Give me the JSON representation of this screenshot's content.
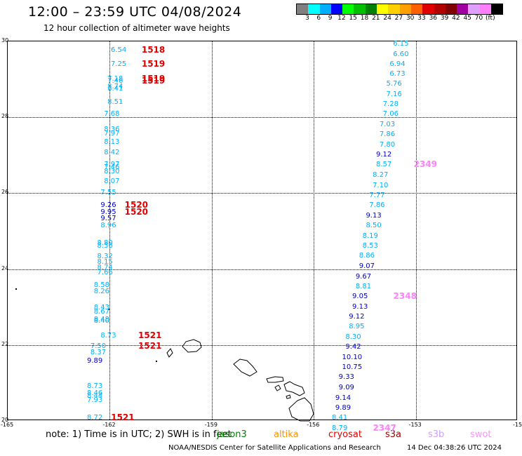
{
  "header": {
    "title": "12:00 – 23:59 UTC 04/08/2024",
    "subtitle": "12 hour collection of altimeter wave heights"
  },
  "legend": {
    "colors": [
      "#808080",
      "#00ffff",
      "#00b0ff",
      "#0000ff",
      "#00ff00",
      "#00c000",
      "#008000",
      "#ffff00",
      "#ffd000",
      "#ffa000",
      "#ff6000",
      "#e00000",
      "#b00000",
      "#800000",
      "#a000a0",
      "#e0a0ff",
      "#ff80ff",
      "#000000"
    ],
    "labels": [
      "3",
      "6",
      "9",
      "12",
      "15",
      "18",
      "21",
      "24",
      "27",
      "30",
      "33",
      "36",
      "39",
      "42",
      "45",
      "70",
      "(ft)"
    ]
  },
  "axes": {
    "y_labels": [
      "30",
      "28",
      "26",
      "24",
      "22",
      "20"
    ],
    "x_labels": [
      "-165",
      "-162",
      "-159",
      "-156",
      "-153",
      "-15"
    ]
  },
  "chart_data": {
    "type": "scatter",
    "lon_range": [
      -165,
      -150
    ],
    "lat_range": [
      20,
      30
    ],
    "track_west": [
      {
        "lat": 29.75,
        "lon": -161.7,
        "v": "6.54",
        "c": "#00b0ff"
      },
      {
        "lat": 29.38,
        "lon": -161.7,
        "v": "7.25",
        "c": "#00b0ff"
      },
      {
        "lat": 28.98,
        "lon": -161.8,
        "v": "7.18",
        "c": "#00b0ff"
      },
      {
        "lat": 28.92,
        "lon": -161.8,
        "v": "7.46",
        "c": "#00b0ff"
      },
      {
        "lat": 28.78,
        "lon": -161.8,
        "v": "8.74",
        "c": "#00b0ff"
      },
      {
        "lat": 28.72,
        "lon": -161.8,
        "v": "8.41",
        "c": "#00b0ff"
      },
      {
        "lat": 28.38,
        "lon": -161.8,
        "v": "8.51",
        "c": "#00b0ff"
      },
      {
        "lat": 28.05,
        "lon": -161.9,
        "v": "7.68",
        "c": "#00b0ff"
      },
      {
        "lat": 27.65,
        "lon": -161.9,
        "v": "8.36",
        "c": "#00b0ff"
      },
      {
        "lat": 27.55,
        "lon": -161.9,
        "v": "7.97",
        "c": "#00b0ff"
      },
      {
        "lat": 27.32,
        "lon": -161.9,
        "v": "8.13",
        "c": "#00b0ff"
      },
      {
        "lat": 27.05,
        "lon": -161.9,
        "v": "8.42",
        "c": "#00b0ff"
      },
      {
        "lat": 26.72,
        "lon": -161.9,
        "v": "7.97",
        "c": "#00b0ff"
      },
      {
        "lat": 26.65,
        "lon": -161.9,
        "v": "7.46",
        "c": "#00b0ff"
      },
      {
        "lat": 26.55,
        "lon": -161.9,
        "v": "8.30",
        "c": "#00b0ff"
      },
      {
        "lat": 26.28,
        "lon": -161.9,
        "v": "8.07",
        "c": "#00b0ff"
      },
      {
        "lat": 25.98,
        "lon": -162.0,
        "v": "7.55",
        "c": "#00b0ff"
      },
      {
        "lat": 25.65,
        "lon": -162.0,
        "v": "9.26",
        "c": "#0000c8"
      },
      {
        "lat": 25.48,
        "lon": -162.0,
        "v": "9.95",
        "c": "#0000c8"
      },
      {
        "lat": 25.3,
        "lon": -162.0,
        "v": "9.57",
        "c": "#0000c8"
      },
      {
        "lat": 25.12,
        "lon": -162.0,
        "v": "8.96",
        "c": "#00b0ff"
      },
      {
        "lat": 24.65,
        "lon": -162.1,
        "v": "8.80",
        "c": "#00b0ff"
      },
      {
        "lat": 24.58,
        "lon": -162.1,
        "v": "8.56",
        "c": "#00b0ff"
      },
      {
        "lat": 24.3,
        "lon": -162.1,
        "v": "8.32",
        "c": "#00b0ff"
      },
      {
        "lat": 24.16,
        "lon": -162.1,
        "v": "8.15",
        "c": "#00b0ff"
      },
      {
        "lat": 24.02,
        "lon": -162.1,
        "v": "8.74",
        "c": "#00b0ff"
      },
      {
        "lat": 23.88,
        "lon": -162.1,
        "v": "7.66",
        "c": "#00b0ff"
      },
      {
        "lat": 23.55,
        "lon": -162.2,
        "v": "8.58",
        "c": "#00b0ff"
      },
      {
        "lat": 23.38,
        "lon": -162.2,
        "v": "8.26",
        "c": "#00b0ff"
      },
      {
        "lat": 22.95,
        "lon": -162.2,
        "v": "8.43",
        "c": "#00b0ff"
      },
      {
        "lat": 22.85,
        "lon": -162.2,
        "v": "8.67",
        "c": "#00b0ff"
      },
      {
        "lat": 22.65,
        "lon": -162.2,
        "v": "8.48",
        "c": "#00b0ff"
      },
      {
        "lat": 22.6,
        "lon": -162.2,
        "v": "8.40",
        "c": "#00b0ff"
      },
      {
        "lat": 22.22,
        "lon": -162.0,
        "v": "8.73",
        "c": "#00b0ff"
      },
      {
        "lat": 21.95,
        "lon": -162.3,
        "v": "7.50",
        "c": "#00b0ff"
      },
      {
        "lat": 21.78,
        "lon": -162.3,
        "v": "8.37",
        "c": "#00b0ff"
      },
      {
        "lat": 21.55,
        "lon": -162.4,
        "v": "9.89",
        "c": "#0000c8"
      },
      {
        "lat": 20.88,
        "lon": -162.4,
        "v": "8.73",
        "c": "#00b0ff"
      },
      {
        "lat": 20.7,
        "lon": -162.4,
        "v": "8.46",
        "c": "#00b0ff"
      },
      {
        "lat": 20.62,
        "lon": -162.4,
        "v": "8.44",
        "c": "#00b0ff"
      },
      {
        "lat": 20.52,
        "lon": -162.4,
        "v": "7.93",
        "c": "#00b0ff"
      },
      {
        "lat": 20.05,
        "lon": -162.4,
        "v": "8.72",
        "c": "#00b0ff"
      }
    ],
    "track_east": [
      {
        "lat": 29.9,
        "lon": -153.4,
        "v": "6.15",
        "c": "#00b0ff"
      },
      {
        "lat": 29.63,
        "lon": -153.4,
        "v": "6.60",
        "c": "#00b0ff"
      },
      {
        "lat": 29.38,
        "lon": -153.5,
        "v": "6.94",
        "c": "#00b0ff"
      },
      {
        "lat": 29.12,
        "lon": -153.5,
        "v": "6.73",
        "c": "#00b0ff"
      },
      {
        "lat": 28.85,
        "lon": -153.6,
        "v": "5.76",
        "c": "#00b0ff"
      },
      {
        "lat": 28.58,
        "lon": -153.6,
        "v": "7.16",
        "c": "#00b0ff"
      },
      {
        "lat": 28.32,
        "lon": -153.7,
        "v": "7.28",
        "c": "#00b0ff"
      },
      {
        "lat": 28.05,
        "lon": -153.7,
        "v": "7.06",
        "c": "#00b0ff"
      },
      {
        "lat": 27.78,
        "lon": -153.8,
        "v": "7.03",
        "c": "#00b0ff"
      },
      {
        "lat": 27.52,
        "lon": -153.8,
        "v": "7.86",
        "c": "#00b0ff"
      },
      {
        "lat": 27.25,
        "lon": -153.8,
        "v": "7.80",
        "c": "#00b0ff"
      },
      {
        "lat": 26.98,
        "lon": -153.9,
        "v": "9.12",
        "c": "#0000c8"
      },
      {
        "lat": 26.72,
        "lon": -153.9,
        "v": "8.57",
        "c": "#00b0ff"
      },
      {
        "lat": 26.45,
        "lon": -154.0,
        "v": "8.27",
        "c": "#00b0ff"
      },
      {
        "lat": 26.18,
        "lon": -154.0,
        "v": "7.10",
        "c": "#00b0ff"
      },
      {
        "lat": 25.92,
        "lon": -154.1,
        "v": "7.77",
        "c": "#00b0ff"
      },
      {
        "lat": 25.65,
        "lon": -154.1,
        "v": "7.86",
        "c": "#00b0ff"
      },
      {
        "lat": 25.38,
        "lon": -154.2,
        "v": "9.13",
        "c": "#0000c8"
      },
      {
        "lat": 25.12,
        "lon": -154.2,
        "v": "8.50",
        "c": "#00b0ff"
      },
      {
        "lat": 24.85,
        "lon": -154.3,
        "v": "8.19",
        "c": "#00b0ff"
      },
      {
        "lat": 24.58,
        "lon": -154.3,
        "v": "8.53",
        "c": "#00b0ff"
      },
      {
        "lat": 24.32,
        "lon": -154.4,
        "v": "8.86",
        "c": "#00b0ff"
      },
      {
        "lat": 24.05,
        "lon": -154.4,
        "v": "9.07",
        "c": "#0000c8"
      },
      {
        "lat": 23.78,
        "lon": -154.5,
        "v": "9.67",
        "c": "#0000c8"
      },
      {
        "lat": 23.52,
        "lon": -154.5,
        "v": "8.81",
        "c": "#00b0ff"
      },
      {
        "lat": 23.25,
        "lon": -154.6,
        "v": "9.05",
        "c": "#0000c8"
      },
      {
        "lat": 22.98,
        "lon": -154.6,
        "v": "9.13",
        "c": "#0000c8"
      },
      {
        "lat": 22.72,
        "lon": -154.7,
        "v": "9.12",
        "c": "#0000c8"
      },
      {
        "lat": 22.45,
        "lon": -154.7,
        "v": "8.95",
        "c": "#00b0ff"
      },
      {
        "lat": 22.18,
        "lon": -154.8,
        "v": "8.30",
        "c": "#00b0ff"
      },
      {
        "lat": 21.92,
        "lon": -154.8,
        "v": "9.42",
        "c": "#0000c8"
      },
      {
        "lat": 21.65,
        "lon": -154.9,
        "v": "10.10",
        "c": "#0000c8"
      },
      {
        "lat": 21.38,
        "lon": -154.9,
        "v": "10.75",
        "c": "#0000c8"
      },
      {
        "lat": 21.12,
        "lon": -155.0,
        "v": "9.33",
        "c": "#0000c8"
      },
      {
        "lat": 20.85,
        "lon": -155.0,
        "v": "9.09",
        "c": "#0000c8"
      },
      {
        "lat": 20.58,
        "lon": -155.1,
        "v": "9.14",
        "c": "#0000c8"
      },
      {
        "lat": 20.32,
        "lon": -155.1,
        "v": "9.89",
        "c": "#0000c8"
      },
      {
        "lat": 20.05,
        "lon": -155.2,
        "v": "8.41",
        "c": "#00b0ff"
      },
      {
        "lat": 19.78,
        "lon": -155.2,
        "v": "8.79",
        "c": "#00b0ff"
      }
    ],
    "time_labels": [
      {
        "lat": 29.75,
        "lon": -161.0,
        "t": "1518",
        "c": "#e00000"
      },
      {
        "lat": 29.38,
        "lon": -161.0,
        "t": "1519",
        "c": "#e00000"
      },
      {
        "lat": 28.98,
        "lon": -161.0,
        "t": "1519",
        "c": "#e00000"
      },
      {
        "lat": 28.92,
        "lon": -161.0,
        "t": "1519",
        "c": "#e00000"
      },
      {
        "lat": 25.65,
        "lon": -161.5,
        "t": "1520",
        "c": "#e00000"
      },
      {
        "lat": 25.48,
        "lon": -161.5,
        "t": "1520",
        "c": "#e00000"
      },
      {
        "lat": 22.22,
        "lon": -161.1,
        "t": "1521",
        "c": "#e00000"
      },
      {
        "lat": 21.95,
        "lon": -161.1,
        "t": "1521",
        "c": "#e00000"
      },
      {
        "lat": 20.05,
        "lon": -161.9,
        "t": "1521",
        "c": "#e00000"
      },
      {
        "lat": 26.72,
        "lon": -153.0,
        "t": "2349",
        "c": "#ff80ff"
      },
      {
        "lat": 23.25,
        "lon": -153.6,
        "t": "2348",
        "c": "#ff80ff"
      },
      {
        "lat": 19.78,
        "lon": -154.2,
        "t": "2347",
        "c": "#ff80ff"
      }
    ]
  },
  "note": {
    "prefix": "note: 1) Time is in UTC; 2) SWH is in feet",
    "overlay": "jason3",
    "satellites": [
      {
        "name": "altika",
        "color": "#ff9000"
      },
      {
        "name": "cryosat",
        "color": "#e00000"
      },
      {
        "name": "s3a",
        "color": "#a00000"
      },
      {
        "name": "s3b",
        "color": "#d0a0ff"
      },
      {
        "name": "swot",
        "color": "#ff90ff"
      }
    ]
  },
  "footer": {
    "credit": "NOAA/NESDIS Center for Satellite Applications and Research",
    "timestamp": "14 Dec 04:38:26 UTC 2024"
  }
}
